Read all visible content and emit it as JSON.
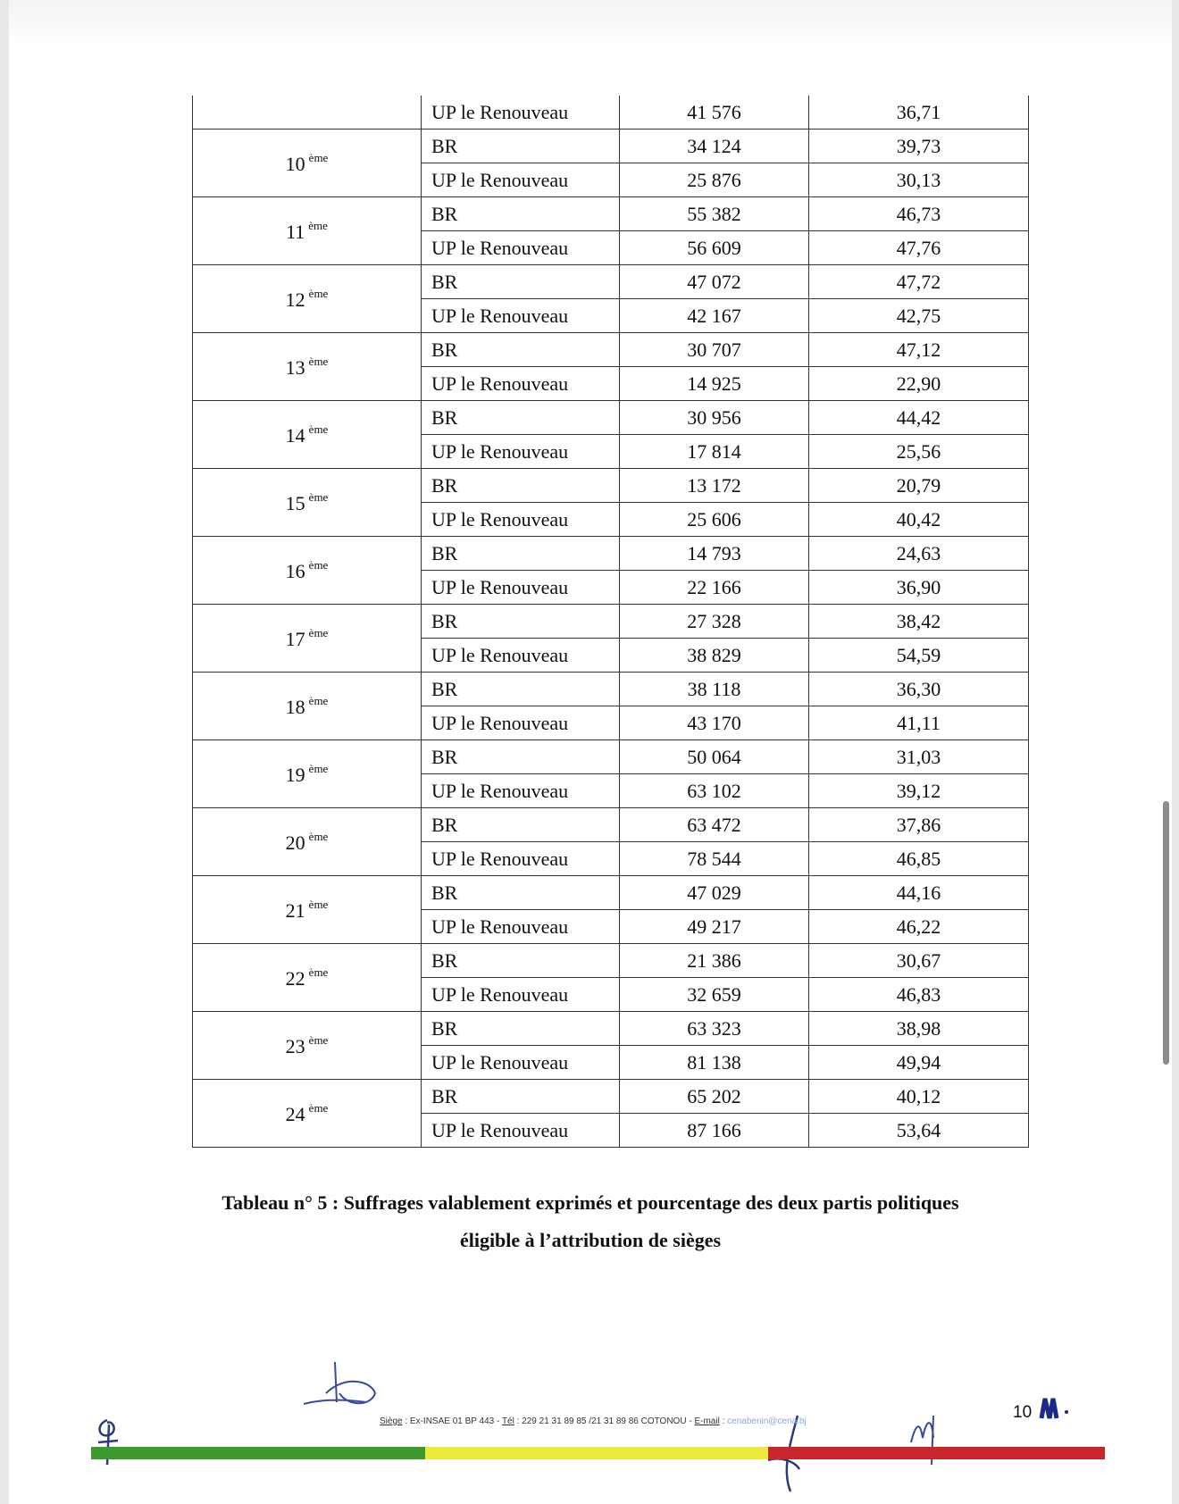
{
  "table": {
    "carry_row": {
      "party": "UP le Renouveau",
      "votes": "41 576",
      "percent": "36,71"
    },
    "groups": [
      {
        "num": "10",
        "suffix": "ème",
        "rows": [
          {
            "party": "BR",
            "votes": "34 124",
            "percent": "39,73"
          },
          {
            "party": "UP le Renouveau",
            "votes": "25 876",
            "percent": "30,13"
          }
        ]
      },
      {
        "num": "11",
        "suffix": "ème",
        "rows": [
          {
            "party": "BR",
            "votes": "55 382",
            "percent": "46,73"
          },
          {
            "party": "UP le Renouveau",
            "votes": "56 609",
            "percent": "47,76"
          }
        ]
      },
      {
        "num": "12",
        "suffix": "ème",
        "rows": [
          {
            "party": "BR",
            "votes": "47 072",
            "percent": "47,72"
          },
          {
            "party": "UP le Renouveau",
            "votes": "42 167",
            "percent": "42,75"
          }
        ]
      },
      {
        "num": "13",
        "suffix": "ème",
        "rows": [
          {
            "party": "BR",
            "votes": "30 707",
            "percent": "47,12"
          },
          {
            "party": "UP le Renouveau",
            "votes": "14 925",
            "percent": "22,90"
          }
        ]
      },
      {
        "num": "14",
        "suffix": "ème",
        "rows": [
          {
            "party": "BR",
            "votes": "30 956",
            "percent": "44,42"
          },
          {
            "party": "UP le Renouveau",
            "votes": "17 814",
            "percent": "25,56"
          }
        ]
      },
      {
        "num": "15",
        "suffix": "ème",
        "rows": [
          {
            "party": "BR",
            "votes": "13 172",
            "percent": "20,79"
          },
          {
            "party": "UP le Renouveau",
            "votes": "25 606",
            "percent": "40,42"
          }
        ]
      },
      {
        "num": "16",
        "suffix": "ème",
        "rows": [
          {
            "party": "BR",
            "votes": "14 793",
            "percent": "24,63"
          },
          {
            "party": "UP le Renouveau",
            "votes": "22 166",
            "percent": "36,90"
          }
        ]
      },
      {
        "num": "17",
        "suffix": "ème",
        "rows": [
          {
            "party": "BR",
            "votes": "27 328",
            "percent": "38,42"
          },
          {
            "party": "UP le Renouveau",
            "votes": "38 829",
            "percent": "54,59"
          }
        ]
      },
      {
        "num": "18",
        "suffix": "ème",
        "rows": [
          {
            "party": "BR",
            "votes": "38 118",
            "percent": "36,30"
          },
          {
            "party": "UP le Renouveau",
            "votes": "43 170",
            "percent": "41,11"
          }
        ]
      },
      {
        "num": "19",
        "suffix": "ème",
        "rows": [
          {
            "party": "BR",
            "votes": "50 064",
            "percent": "31,03"
          },
          {
            "party": "UP le Renouveau",
            "votes": "63 102",
            "percent": "39,12"
          }
        ]
      },
      {
        "num": "20",
        "suffix": "ème",
        "rows": [
          {
            "party": "BR",
            "votes": "63 472",
            "percent": "37,86"
          },
          {
            "party": "UP le Renouveau",
            "votes": "78 544",
            "percent": "46,85"
          }
        ]
      },
      {
        "num": "21",
        "suffix": "ème",
        "rows": [
          {
            "party": "BR",
            "votes": "47 029",
            "percent": "44,16"
          },
          {
            "party": "UP le Renouveau",
            "votes": "49 217",
            "percent": "46,22"
          }
        ]
      },
      {
        "num": "22",
        "suffix": "ème",
        "rows": [
          {
            "party": "BR",
            "votes": "21 386",
            "percent": "30,67"
          },
          {
            "party": "UP le Renouveau",
            "votes": "32 659",
            "percent": "46,83"
          }
        ]
      },
      {
        "num": "23",
        "suffix": "ème",
        "rows": [
          {
            "party": "BR",
            "votes": "63 323",
            "percent": "38,98"
          },
          {
            "party": "UP le Renouveau",
            "votes": "81 138",
            "percent": "49,94"
          }
        ]
      },
      {
        "num": "24",
        "suffix": "ème",
        "rows": [
          {
            "party": "BR",
            "votes": "65 202",
            "percent": "40,12"
          },
          {
            "party": "UP le Renouveau",
            "votes": "87 166",
            "percent": "53,64"
          }
        ]
      }
    ]
  },
  "caption": {
    "line1": "Tableau n° 5 : Suffrages valablement exprimés et pourcentage des deux partis politiques",
    "line2": "éligible à l’attribution de sièges"
  },
  "footer": {
    "siege_label": "Siège",
    "siege": " : Ex-INSAE 01 BP 443 - ",
    "tel_label": "Tél",
    "tel": " : 229 21 31 89 85 /21 31 89 86 COTONOU - ",
    "email_label": "E-mail",
    "email_sep": " : ",
    "email": "cenabenin@cena.bj"
  },
  "page_number": "10",
  "flag_colors": {
    "green": "#3f9a2e",
    "yellow": "#ecea3a",
    "red": "#c9262b"
  }
}
